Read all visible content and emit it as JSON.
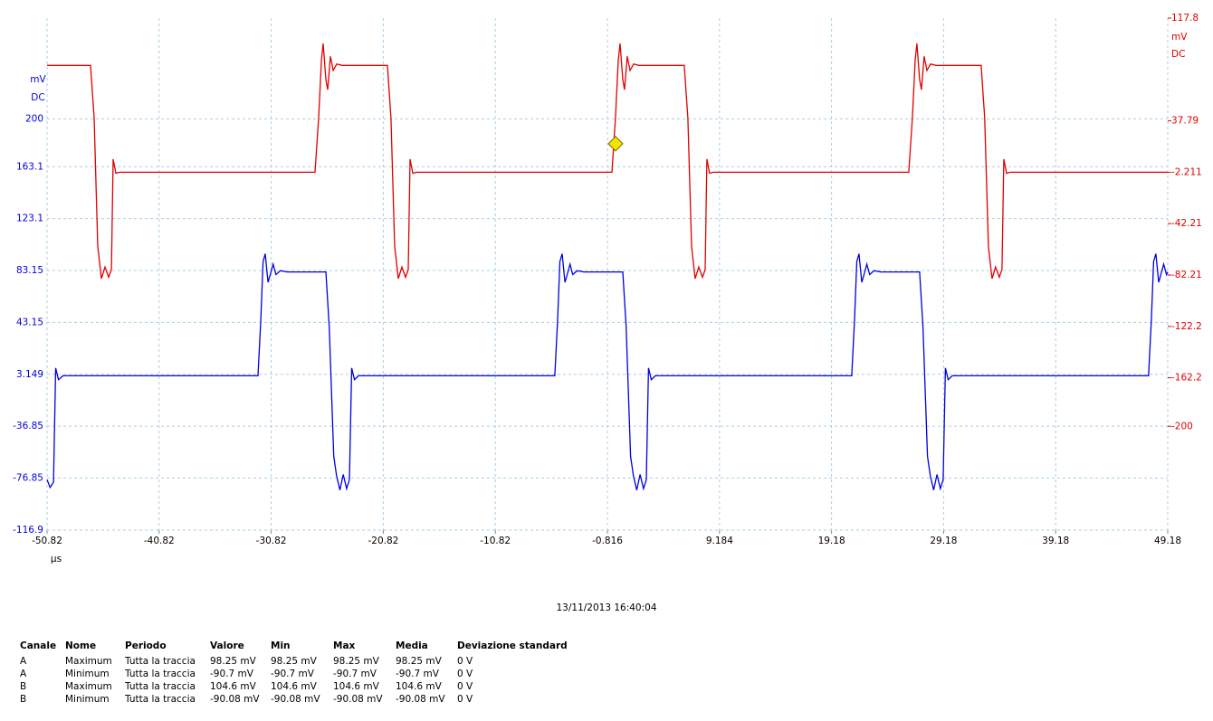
{
  "chart_data": {
    "type": "line",
    "xlim": [
      -50.82,
      49.18
    ],
    "xticks": [
      -50.82,
      -40.82,
      -30.82,
      -20.82,
      -10.82,
      -0.816,
      9.184,
      19.18,
      29.18,
      39.18,
      49.18
    ],
    "xlabel": "µs",
    "ylim": [
      -116.9,
      277.6
    ],
    "yticks": [
      200.0,
      163.1,
      123.1,
      83.15,
      43.15,
      3.149,
      -36.85,
      -76.85,
      -116.9
    ],
    "ylabel_lines": [
      "mV",
      "DC"
    ],
    "y2lim": [
      -280.8,
      117.8
    ],
    "y2ticks": [
      117.8,
      37.79,
      -2.211,
      -42.21,
      -82.21,
      -122.2,
      -162.2,
      -200.0
    ],
    "y2label_lines": [
      "mV",
      "DC"
    ],
    "grid": true,
    "trigger_marker": {
      "x": -0.09,
      "value": 20,
      "color": "#f5e400"
    },
    "series": [
      {
        "color": "#0000e0",
        "axis": "y",
        "x": [
          -50.82,
          -50.55,
          -50.25,
          -50.05,
          -49.8,
          -49.4,
          -32.0,
          -31.75,
          -31.55,
          -31.35,
          -31.1,
          -30.9,
          -30.65,
          -30.4,
          -30.0,
          -29.4,
          -25.94,
          -25.64,
          -25.24,
          -24.99,
          -24.69,
          -24.39,
          -24.09,
          -23.84,
          -23.64,
          -23.39,
          -23.04,
          -5.51,
          -5.26,
          -5.06,
          -4.86,
          -4.61,
          -4.41,
          -4.16,
          -3.91,
          -3.51,
          -2.91,
          0.55,
          0.85,
          1.25,
          1.5,
          1.8,
          2.1,
          2.4,
          2.65,
          2.85,
          3.1,
          3.45,
          20.98,
          21.23,
          21.43,
          21.63,
          21.88,
          22.08,
          22.33,
          22.58,
          22.98,
          23.58,
          27.04,
          27.34,
          27.74,
          27.99,
          28.29,
          28.59,
          28.89,
          29.14,
          29.34,
          29.59,
          29.94,
          47.47,
          47.72,
          47.92,
          48.12,
          48.37,
          48.57,
          48.82,
          49.07,
          49.18
        ],
        "values": [
          -78,
          -84,
          -80,
          8,
          -1,
          2,
          2,
          45,
          90,
          96,
          74,
          80,
          88,
          80,
          83,
          82,
          82,
          40,
          -60,
          -75,
          -86,
          -74,
          -85,
          -78,
          8,
          -1,
          2,
          2,
          45,
          90,
          96,
          74,
          80,
          88,
          80,
          83,
          82,
          82,
          40,
          -60,
          -75,
          -86,
          -74,
          -85,
          -78,
          8,
          -1,
          2,
          2,
          45,
          90,
          96,
          74,
          80,
          88,
          80,
          83,
          82,
          82,
          40,
          -60,
          -75,
          -86,
          -74,
          -85,
          -78,
          8,
          -1,
          2,
          2,
          45,
          90,
          96,
          74,
          80,
          88,
          80,
          82
        ]
      },
      {
        "color": "#e00000",
        "axis": "y2",
        "x": [
          -50.82,
          -46.94,
          -46.62,
          -46.3,
          -45.97,
          -45.65,
          -45.33,
          -45.08,
          -44.92,
          -44.68,
          -44.36,
          -26.91,
          -26.59,
          -26.34,
          -26.18,
          -25.94,
          -25.78,
          -25.54,
          -25.29,
          -24.97,
          -24.49,
          -20.45,
          -20.13,
          -19.8,
          -19.48,
          -19.16,
          -18.83,
          -18.59,
          -18.43,
          -18.19,
          -17.86,
          -0.42,
          -0.1,
          0.15,
          0.31,
          0.55,
          0.71,
          0.95,
          1.2,
          1.52,
          2.0,
          6.04,
          6.36,
          6.69,
          7.01,
          7.33,
          7.66,
          7.9,
          8.06,
          8.3,
          8.63,
          26.07,
          26.39,
          26.64,
          26.8,
          27.04,
          27.2,
          27.44,
          27.69,
          28.01,
          28.49,
          32.53,
          32.85,
          33.18,
          33.5,
          33.82,
          34.15,
          34.39,
          34.55,
          34.79,
          35.12,
          49.18
        ],
        "values": [
          81,
          81,
          40,
          -60,
          -85,
          -76,
          -84,
          -78,
          8,
          -3,
          -2.2,
          -2.2,
          40,
          85,
          98,
          70,
          62,
          88,
          77,
          82,
          81,
          81,
          40,
          -60,
          -85,
          -76,
          -84,
          -78,
          8,
          -3,
          -2.2,
          -2.2,
          40,
          85,
          98,
          70,
          62,
          88,
          77,
          82,
          81,
          81,
          40,
          -60,
          -85,
          -76,
          -84,
          -78,
          8,
          -3,
          -2.2,
          -2.2,
          40,
          85,
          98,
          70,
          62,
          88,
          77,
          82,
          81,
          81,
          40,
          -60,
          -85,
          -76,
          -84,
          -78,
          8,
          -3,
          -2.2,
          -2.2
        ]
      }
    ]
  },
  "timestamp": "13/11/2013 16:40:04",
  "table": {
    "header": [
      "Canale",
      "Nome",
      "Periodo",
      "Valore",
      "Min",
      "Max",
      "Media",
      "Deviazione standard"
    ],
    "rows": [
      [
        "A",
        "Maximum",
        "Tutta la traccia",
        "98.25 mV",
        "98.25 mV",
        "98.25 mV",
        "98.25 mV",
        "0 V"
      ],
      [
        "A",
        "Minimum",
        "Tutta la traccia",
        "-90.7 mV",
        "-90.7 mV",
        "-90.7 mV",
        "-90.7 mV",
        "0 V"
      ],
      [
        "B",
        "Maximum",
        "Tutta la traccia",
        "104.6 mV",
        "104.6 mV",
        "104.6 mV",
        "104.6 mV",
        "0 V"
      ],
      [
        "B",
        "Minimum",
        "Tutta la traccia",
        "-90.08 mV",
        "-90.08 mV",
        "-90.08 mV",
        "-90.08 mV",
        "0 V"
      ]
    ]
  }
}
